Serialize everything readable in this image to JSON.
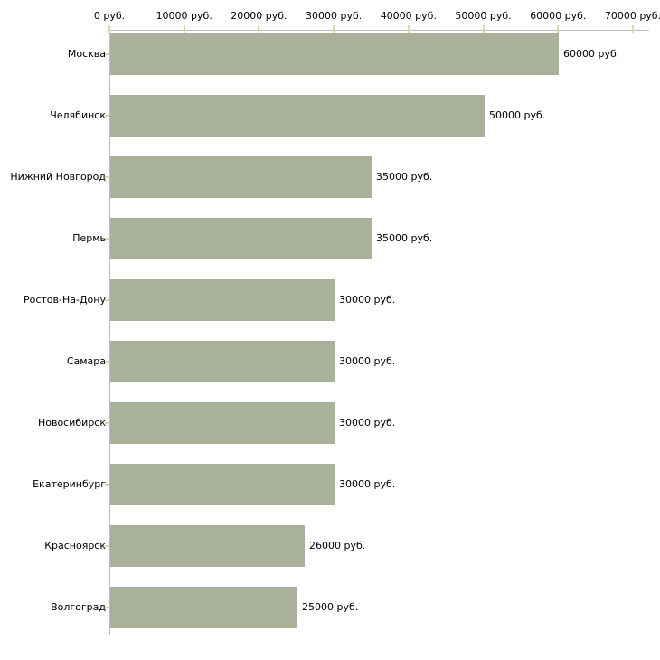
{
  "chart_data": {
    "type": "bar",
    "orientation": "horizontal",
    "title": "",
    "xlabel": "",
    "ylabel": "",
    "unit": "руб.",
    "xlim": [
      0,
      70000
    ],
    "x_tick_step": 10000,
    "x_tick_labels": [
      "0 руб.",
      "10000 руб.",
      "20000 руб.",
      "30000 руб.",
      "40000 руб.",
      "50000 руб.",
      "60000 руб.",
      "70000 руб."
    ],
    "categories": [
      "Москва",
      "Челябинск",
      "Нижний Новгород",
      "Пермь",
      "Ростов-На-Дону",
      "Самара",
      "Новосибирск",
      "Екатеринбург",
      "Красноярск",
      "Волгоград"
    ],
    "values": [
      60000,
      50000,
      35000,
      35000,
      30000,
      30000,
      30000,
      30000,
      26000,
      25000
    ],
    "value_labels": [
      "60000 руб.",
      "50000 руб.",
      "35000 руб.",
      "35000 руб.",
      "30000 руб.",
      "30000 руб.",
      "30000 руб.",
      "30000 руб.",
      "26000 руб.",
      "25000 руб."
    ],
    "grid": false,
    "legend": "none",
    "colors": {
      "bar": "#aab19a",
      "axis_line": "#bcbcbc",
      "tick_mark": "#d8d9ae",
      "text": "#000000",
      "background": "#ffffff"
    }
  }
}
